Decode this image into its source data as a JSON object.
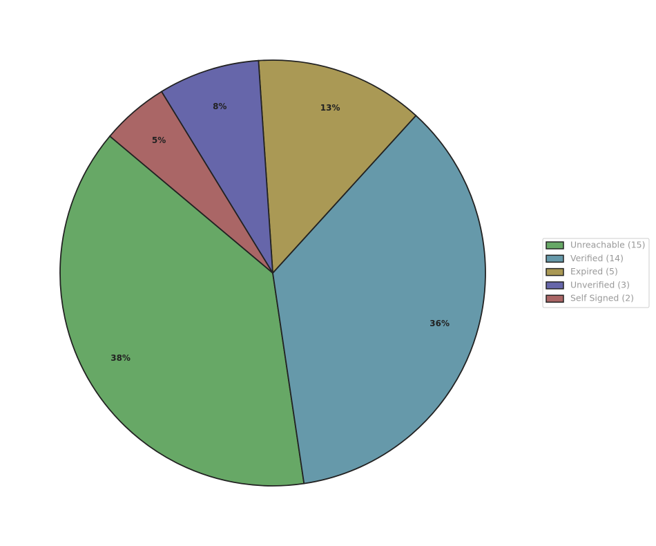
{
  "chart_data": {
    "type": "pie",
    "categories": [
      "Unreachable (15)",
      "Verified (14)",
      "Expired (5)",
      "Unverified (3)",
      "Self Signed (2)"
    ],
    "values": [
      38.46,
      35.9,
      12.82,
      7.69,
      5.13
    ],
    "value_labels": [
      "38%",
      "36%",
      "13%",
      "8%",
      "5%"
    ],
    "colors": [
      "#67a866",
      "#6699aa",
      "#aa9955",
      "#6666aa",
      "#aa6666"
    ],
    "legend": "right"
  }
}
